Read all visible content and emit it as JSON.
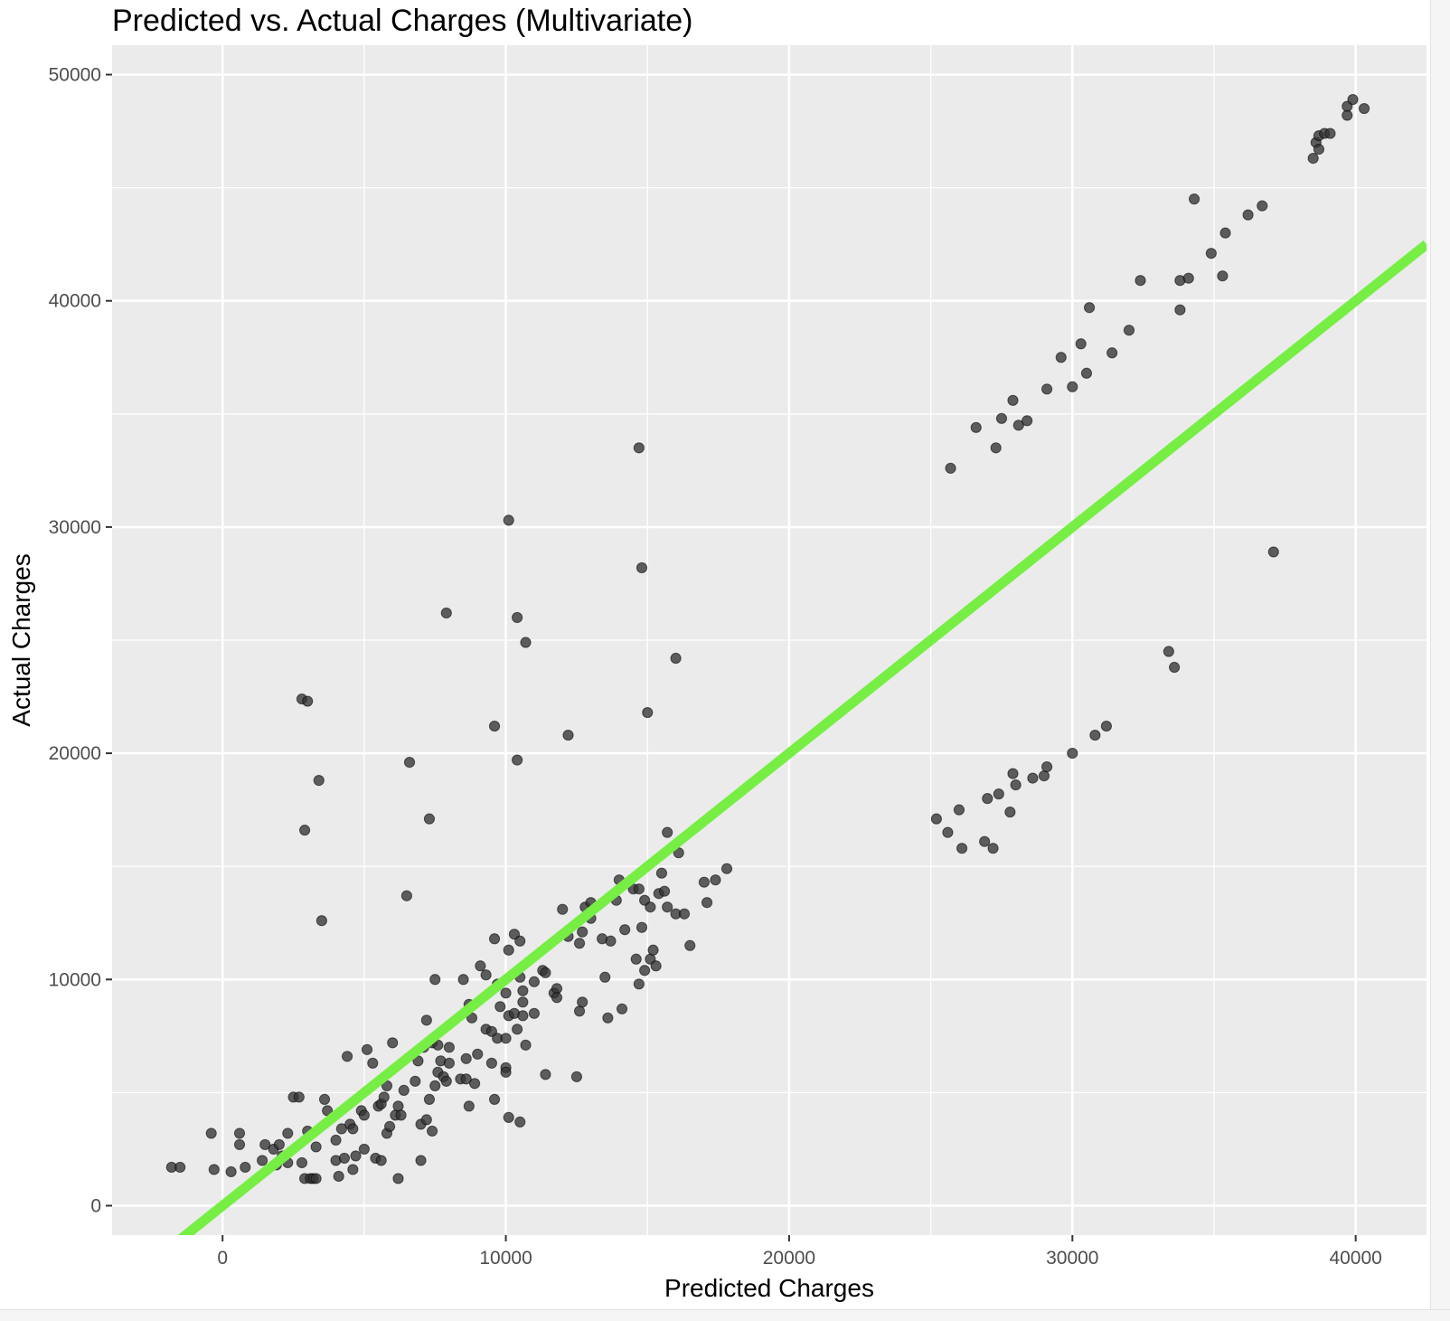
{
  "chart_data": {
    "type": "scatter",
    "title": "Predicted vs. Actual Charges (Multivariate)",
    "xlabel": "Predicted Charges",
    "ylabel": "Actual Charges",
    "xlim": [
      -3900,
      42500
    ],
    "ylim": [
      -1300,
      51300
    ],
    "x_ticks": [
      0,
      10000,
      20000,
      30000,
      40000
    ],
    "y_ticks": [
      0,
      10000,
      20000,
      30000,
      40000,
      50000
    ],
    "x_tick_labels": [
      "0",
      "10000",
      "20000",
      "30000",
      "40000"
    ],
    "y_tick_labels": [
      "0",
      "10000",
      "20000",
      "30000",
      "40000",
      "50000"
    ],
    "grid": true,
    "background": "#ebebeb",
    "point_color": "#333333",
    "reference_line": {
      "type": "identity",
      "slope": 1,
      "intercept": 0,
      "color": "#77ee44"
    },
    "points": [
      [
        -1800,
        1700
      ],
      [
        -1500,
        1700
      ],
      [
        -400,
        3200
      ],
      [
        -300,
        1600
      ],
      [
        300,
        1500
      ],
      [
        600,
        3200
      ],
      [
        600,
        2700
      ],
      [
        800,
        1700
      ],
      [
        1400,
        2000
      ],
      [
        1500,
        2700
      ],
      [
        1800,
        2500
      ],
      [
        1900,
        1800
      ],
      [
        2000,
        2700
      ],
      [
        2100,
        2200
      ],
      [
        2300,
        1900
      ],
      [
        2300,
        3200
      ],
      [
        2500,
        4800
      ],
      [
        2700,
        4800
      ],
      [
        2800,
        1900
      ],
      [
        2800,
        22400
      ],
      [
        2900,
        16600
      ],
      [
        3000,
        22300
      ],
      [
        2900,
        1200
      ],
      [
        3100,
        1200
      ],
      [
        3200,
        1200
      ],
      [
        3300,
        1200
      ],
      [
        3400,
        18800
      ],
      [
        3500,
        12600
      ],
      [
        3300,
        2600
      ],
      [
        3000,
        3300
      ],
      [
        3600,
        4700
      ],
      [
        3700,
        4200
      ],
      [
        4000,
        2900
      ],
      [
        4000,
        2000
      ],
      [
        4100,
        1300
      ],
      [
        4200,
        3400
      ],
      [
        4300,
        2100
      ],
      [
        4400,
        6600
      ],
      [
        4500,
        3600
      ],
      [
        4600,
        3400
      ],
      [
        4600,
        1600
      ],
      [
        4700,
        2200
      ],
      [
        4900,
        4200
      ],
      [
        5000,
        4000
      ],
      [
        5000,
        2500
      ],
      [
        5100,
        6900
      ],
      [
        5300,
        6300
      ],
      [
        5400,
        2100
      ],
      [
        5500,
        4400
      ],
      [
        5600,
        4500
      ],
      [
        5600,
        2000
      ],
      [
        5700,
        4800
      ],
      [
        5800,
        5300
      ],
      [
        5800,
        3200
      ],
      [
        5900,
        3500
      ],
      [
        6000,
        7200
      ],
      [
        6100,
        4000
      ],
      [
        6200,
        1200
      ],
      [
        6200,
        4400
      ],
      [
        6300,
        4000
      ],
      [
        6400,
        5100
      ],
      [
        6500,
        13700
      ],
      [
        6600,
        19600
      ],
      [
        6800,
        5500
      ],
      [
        6900,
        6400
      ],
      [
        7000,
        3600
      ],
      [
        7000,
        2000
      ],
      [
        7100,
        7000
      ],
      [
        7200,
        8200
      ],
      [
        7200,
        3800
      ],
      [
        7300,
        17100
      ],
      [
        7300,
        4700
      ],
      [
        7400,
        3300
      ],
      [
        7400,
        7200
      ],
      [
        7500,
        10000
      ],
      [
        7500,
        5300
      ],
      [
        7600,
        5900
      ],
      [
        7600,
        7100
      ],
      [
        7700,
        6400
      ],
      [
        7800,
        5700
      ],
      [
        7900,
        26200
      ],
      [
        7900,
        5500
      ],
      [
        8000,
        6300
      ],
      [
        8000,
        7000
      ],
      [
        8400,
        5600
      ],
      [
        8500,
        10000
      ],
      [
        8600,
        6500
      ],
      [
        8600,
        5600
      ],
      [
        8700,
        4400
      ],
      [
        8700,
        8900
      ],
      [
        8800,
        8300
      ],
      [
        8900,
        5400
      ],
      [
        9000,
        6700
      ],
      [
        9100,
        10600
      ],
      [
        9300,
        7800
      ],
      [
        9300,
        10200
      ],
      [
        9500,
        6300
      ],
      [
        9500,
        7700
      ],
      [
        9600,
        4700
      ],
      [
        9600,
        11800
      ],
      [
        9600,
        21200
      ],
      [
        9700,
        7400
      ],
      [
        9700,
        9800
      ],
      [
        9800,
        8800
      ],
      [
        10000,
        9400
      ],
      [
        10000,
        7400
      ],
      [
        10000,
        6100
      ],
      [
        10000,
        5900
      ],
      [
        10100,
        11300
      ],
      [
        10100,
        8400
      ],
      [
        10100,
        3900
      ],
      [
        10100,
        30300
      ],
      [
        10300,
        12000
      ],
      [
        10300,
        8500
      ],
      [
        10400,
        7800
      ],
      [
        10400,
        19700
      ],
      [
        10400,
        26000
      ],
      [
        10500,
        3700
      ],
      [
        10500,
        10100
      ],
      [
        10500,
        11700
      ],
      [
        10600,
        9500
      ],
      [
        10600,
        8400
      ],
      [
        10600,
        9000
      ],
      [
        10700,
        7100
      ],
      [
        10700,
        24900
      ],
      [
        11000,
        9900
      ],
      [
        11000,
        8500
      ],
      [
        11300,
        10400
      ],
      [
        11400,
        5800
      ],
      [
        11400,
        10300
      ],
      [
        11700,
        9400
      ],
      [
        11800,
        9600
      ],
      [
        11800,
        9200
      ],
      [
        12000,
        13100
      ],
      [
        12200,
        20800
      ],
      [
        12200,
        11900
      ],
      [
        12500,
        5700
      ],
      [
        12600,
        11600
      ],
      [
        12600,
        8600
      ],
      [
        12700,
        12100
      ],
      [
        12700,
        9000
      ],
      [
        12800,
        13200
      ],
      [
        13000,
        12700
      ],
      [
        13000,
        13400
      ],
      [
        13400,
        11800
      ],
      [
        13500,
        10100
      ],
      [
        13600,
        8300
      ],
      [
        13700,
        11700
      ],
      [
        13900,
        13500
      ],
      [
        14000,
        14400
      ],
      [
        14100,
        8700
      ],
      [
        14200,
        12200
      ],
      [
        14500,
        14000
      ],
      [
        14600,
        10900
      ],
      [
        14700,
        14000
      ],
      [
        14700,
        9800
      ],
      [
        14700,
        33500
      ],
      [
        14800,
        12300
      ],
      [
        14800,
        28200
      ],
      [
        14900,
        10400
      ],
      [
        14900,
        13500
      ],
      [
        15000,
        21800
      ],
      [
        15100,
        13200
      ],
      [
        15100,
        10900
      ],
      [
        15200,
        11300
      ],
      [
        15300,
        10600
      ],
      [
        15400,
        13800
      ],
      [
        15500,
        14700
      ],
      [
        15600,
        13900
      ],
      [
        15700,
        16500
      ],
      [
        15700,
        13200
      ],
      [
        16000,
        12900
      ],
      [
        16000,
        24200
      ],
      [
        16100,
        15600
      ],
      [
        16300,
        12900
      ],
      [
        16500,
        11500
      ],
      [
        17000,
        14300
      ],
      [
        17100,
        13400
      ],
      [
        17400,
        14400
      ],
      [
        17800,
        14900
      ],
      [
        25200,
        17100
      ],
      [
        25600,
        16500
      ],
      [
        25700,
        32600
      ],
      [
        26000,
        17500
      ],
      [
        26100,
        15800
      ],
      [
        26600,
        34400
      ],
      [
        26900,
        16100
      ],
      [
        27000,
        18000
      ],
      [
        27200,
        15800
      ],
      [
        27300,
        33500
      ],
      [
        27400,
        18200
      ],
      [
        27500,
        34800
      ],
      [
        27800,
        17400
      ],
      [
        27900,
        19100
      ],
      [
        27900,
        35600
      ],
      [
        28000,
        18600
      ],
      [
        28100,
        34500
      ],
      [
        28400,
        34700
      ],
      [
        28600,
        18900
      ],
      [
        29000,
        19000
      ],
      [
        29100,
        36100
      ],
      [
        29100,
        19400
      ],
      [
        29600,
        37500
      ],
      [
        30000,
        36200
      ],
      [
        30000,
        20000
      ],
      [
        30300,
        38100
      ],
      [
        30500,
        36800
      ],
      [
        30600,
        39700
      ],
      [
        30800,
        20800
      ],
      [
        31200,
        21200
      ],
      [
        31400,
        37700
      ],
      [
        32000,
        38700
      ],
      [
        32400,
        40900
      ],
      [
        33400,
        24500
      ],
      [
        33600,
        23800
      ],
      [
        33800,
        40900
      ],
      [
        33800,
        39600
      ],
      [
        34100,
        41000
      ],
      [
        34300,
        44500
      ],
      [
        34900,
        42100
      ],
      [
        35300,
        41100
      ],
      [
        35400,
        43000
      ],
      [
        36200,
        43800
      ],
      [
        36700,
        44200
      ],
      [
        37100,
        28900
      ],
      [
        38500,
        46300
      ],
      [
        38600,
        47000
      ],
      [
        38700,
        46700
      ],
      [
        38700,
        47300
      ],
      [
        38900,
        47400
      ],
      [
        39100,
        47400
      ],
      [
        39700,
        48200
      ],
      [
        39700,
        48600
      ],
      [
        39900,
        48900
      ],
      [
        40300,
        48500
      ]
    ]
  }
}
